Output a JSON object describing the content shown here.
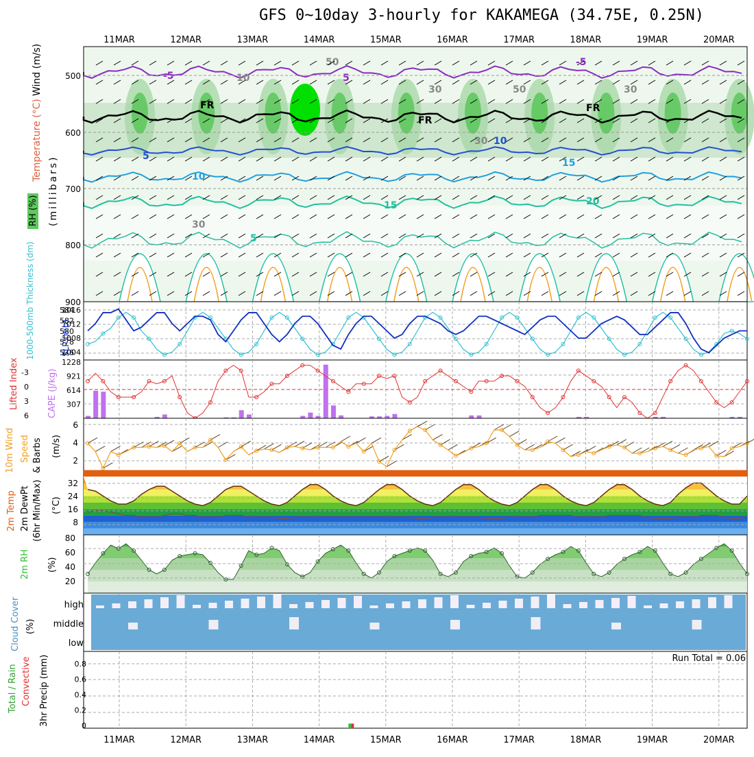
{
  "title": "GFS 0~10day 3-hourly for KAKAMEGA (34.75E, 0.25N)",
  "dates": [
    "11MAR",
    "12MAR",
    "13MAR",
    "14MAR",
    "15MAR",
    "16MAR",
    "17MAR",
    "18MAR",
    "19MAR",
    "20MAR"
  ],
  "colors": {
    "rh_light": "#e6f4e6",
    "rh_mid": "#a8d8a8",
    "rh_dark": "#5fc85f",
    "rh_max": "#00e000",
    "temp_purple": "#8a2bc0",
    "temp_blue": "#2050d0",
    "temp_cyan": "#20a0e0",
    "temp_teal": "#20c0a0",
    "slp": "#1030c0",
    "thickness": "#30c0d0",
    "lifted_index": "#e03030",
    "cape": "#c070f0",
    "wind10m": "#f0a020",
    "rh2m": "#30c030",
    "cloud": "#6aaad6",
    "precip_rain": "#30c030",
    "precip_conv": "#e03030"
  },
  "panels": {
    "upper": {
      "ylabel_wind": "Wind (m/s)",
      "ylabel_temp": "Temperature (°C)",
      "ylabel_rh": "RH (%)",
      "ylabel_mb": "(millibars)",
      "y_ticks": [
        "500",
        "600",
        "700",
        "800",
        "900"
      ],
      "contour_labels": [
        "-5",
        "5",
        "-5",
        "FR",
        "FR",
        "FR",
        "5",
        "10",
        "10",
        "15",
        "15",
        "20",
        "5",
        "10",
        "30",
        "50",
        "30",
        "30",
        "50",
        "30"
      ]
    },
    "slp": {
      "ylabel_thick": "1000-500mb Thickness (dm)",
      "ylabel_slp": "SLP (mb)",
      "left_ticks": [
        "584",
        "582",
        "580",
        "578",
        "576"
      ],
      "right_ticks": [
        "1016",
        "1012",
        "1008",
        "1004"
      ]
    },
    "cape": {
      "ylabel_li": "Lifted Index",
      "ylabel_cape": "CAPE (J/kg)",
      "left_ticks": [
        "-3",
        "0",
        "3",
        "6"
      ],
      "right_ticks": [
        "1228",
        "921",
        "614",
        "307"
      ]
    },
    "wind": {
      "ylabel_1": "10m Wind",
      "ylabel_2": "Speed",
      "ylabel_3": "& Barbs",
      "ylabel_units": "(m/s)",
      "ticks": [
        "6",
        "4",
        "2"
      ]
    },
    "temp": {
      "ylabel_1": "2m Temp",
      "ylabel_2": "2m DewPt",
      "ylabel_3": "(6hr Min/Max)",
      "ylabel_units": "(°C)",
      "ticks": [
        "32",
        "24",
        "16",
        "8"
      ]
    },
    "rh": {
      "ylabel": "2m RH",
      "units": "(%)",
      "ticks": [
        "80",
        "60",
        "40",
        "20"
      ]
    },
    "cloud": {
      "ylabel": "Cloud Cover",
      "units": "(%)",
      "levels": [
        "high",
        "middle",
        "low"
      ]
    },
    "precip": {
      "ylabel_1": "Total / Rain",
      "ylabel_2": "Convective",
      "ylabel_3": "3hr Precip (mm)",
      "ticks": [
        "0.8",
        "0.6",
        "0.4",
        "0.2",
        "0"
      ],
      "run_total": "Run Total = 0.06"
    }
  },
  "chart_data": [
    {
      "type": "line",
      "name_left": "1000-500mb Thickness (dm)",
      "name_right": "SLP (mb)",
      "x_labels": [
        "11MAR",
        "12MAR",
        "13MAR",
        "14MAR",
        "15MAR",
        "16MAR",
        "17MAR",
        "18MAR",
        "19MAR",
        "20MAR"
      ],
      "series": [
        {
          "name": "SLP (mb)",
          "values": [
            1010,
            1012,
            1015,
            1015,
            1016,
            1013,
            1010,
            1011,
            1013,
            1015,
            1015,
            1012,
            1010,
            1012,
            1014,
            1014,
            1013,
            1009,
            1007,
            1010,
            1013,
            1015,
            1015,
            1012,
            1009,
            1007,
            1009,
            1012,
            1014,
            1014,
            1012,
            1009,
            1006,
            1005,
            1009,
            1012,
            1014,
            1014,
            1012,
            1010,
            1008,
            1009,
            1012,
            1014,
            1014,
            1013,
            1012,
            1010,
            1009,
            1010,
            1012,
            1014,
            1014,
            1013,
            1012,
            1011,
            1010,
            1009,
            1011,
            1013,
            1014,
            1014,
            1012,
            1010,
            1008,
            1008,
            1010,
            1012,
            1013,
            1014,
            1013,
            1011,
            1009,
            1009,
            1011,
            1013,
            1015,
            1015,
            1012,
            1008,
            1005,
            1004,
            1006,
            1008,
            1009,
            1010,
            1010
          ]
        },
        {
          "name": "1000-500mb Thickness (dm)",
          "values": [
            578,
            578.5,
            580,
            581,
            583,
            584,
            583,
            580.5,
            579,
            577,
            576,
            576.5,
            578,
            580.5,
            583,
            584,
            583,
            581,
            579,
            577,
            576,
            576.5,
            578,
            580.5,
            583,
            584,
            583,
            581,
            579,
            577,
            576,
            576.5,
            578,
            580.5,
            583,
            584,
            583,
            581,
            579,
            577,
            576,
            576.5,
            578,
            580.5,
            583,
            584,
            583,
            581,
            579,
            577,
            576,
            576.5,
            578,
            580.5,
            583,
            584,
            583,
            581,
            579,
            577,
            576,
            576.5,
            578,
            580.5,
            583,
            584,
            583,
            581,
            579,
            577,
            576,
            576.5,
            578,
            580.5,
            583,
            584,
            583,
            581,
            579,
            577,
            576,
            576.5,
            578,
            580,
            580.5,
            580,
            579
          ]
        }
      ]
    },
    {
      "type": "bar",
      "name": "CAPE (J/kg) / Lifted Index",
      "series": [
        {
          "name": "Lifted Index",
          "values": [
            -1,
            -2.5,
            -1,
            1,
            2,
            2,
            2,
            1,
            -1,
            -0.5,
            -1,
            -2,
            2,
            5,
            6,
            5,
            3,
            -1,
            -3,
            -4,
            -3,
            2,
            2,
            1,
            -0.5,
            -0.5,
            -2,
            -3,
            -4,
            -4,
            -3,
            -2,
            -1,
            0,
            1,
            -0.5,
            -0.5,
            -0.5,
            -2,
            -1.5,
            -2,
            2,
            3,
            2,
            -1,
            -2,
            -3,
            -2,
            -1,
            0,
            1,
            -1,
            -1,
            -1,
            -2,
            -2,
            -1,
            0,
            2,
            4,
            5,
            4,
            2,
            -1,
            -3,
            -2,
            -1,
            0,
            2,
            4,
            2,
            3,
            5,
            6,
            5,
            2,
            -1,
            -3,
            -4,
            -3,
            -1,
            1,
            3,
            4,
            3,
            1,
            -1
          ]
        },
        {
          "name": "CAPE (J/kg)",
          "values": [
            50,
            580,
            560,
            0,
            0,
            0,
            0,
            0,
            0,
            30,
            80,
            0,
            0,
            0,
            0,
            0,
            0,
            0,
            20,
            20,
            170,
            80,
            0,
            0,
            0,
            0,
            0,
            0,
            50,
            120,
            50,
            1130,
            270,
            60,
            0,
            0,
            0,
            40,
            40,
            50,
            90,
            0,
            0,
            0,
            0,
            0,
            0,
            0,
            0,
            0,
            60,
            60,
            0,
            0,
            0,
            0,
            0,
            0,
            0,
            0,
            0,
            0,
            0,
            0,
            30,
            30,
            0,
            0,
            0,
            0,
            0,
            0,
            0,
            0,
            30,
            30,
            0,
            0,
            0,
            0,
            0,
            0,
            0,
            0,
            30,
            30,
            0
          ]
        }
      ]
    },
    {
      "type": "line",
      "name": "10m Wind Speed (m/s)",
      "series": [
        {
          "name": "Speed",
          "values": [
            4,
            3,
            1,
            3,
            2.6,
            3,
            3.5,
            3.5,
            3.6,
            3.5,
            3.7,
            3,
            4,
            3,
            3.5,
            3.5,
            4.4,
            3.5,
            2,
            3,
            3.6,
            2.6,
            3.1,
            3.3,
            3.2,
            2.9,
            3.5,
            3.6,
            3.4,
            3.2,
            3.5,
            3.5,
            3.5,
            4.2,
            3.6,
            4,
            3,
            4,
            1.8,
            1.2,
            3.2,
            4.4,
            5.5,
            6,
            5.6,
            4.4,
            3.8,
            3.2,
            2.5,
            2.9,
            3.4,
            3.6,
            4,
            5.6,
            5.6,
            4.8,
            3.8,
            3.2,
            3.2,
            3.5,
            4.2,
            4,
            3.2,
            2.4,
            2.6,
            3,
            2.8,
            3.2,
            3.6,
            3.8,
            3.5,
            2.8,
            2.8,
            3,
            3.4,
            3.6,
            3.2,
            2.8,
            2.6,
            3.2,
            3.4,
            3.6,
            2.5,
            2.4,
            3.4,
            3.6,
            4
          ]
        }
      ]
    },
    {
      "type": "area",
      "name": "2m Temp / DewPt (°C)",
      "series": [
        {
          "name": "2m Temp",
          "values": [
            28,
            27,
            24,
            21,
            19,
            19,
            21,
            25,
            28,
            30,
            30,
            27,
            24,
            21,
            19,
            18,
            20,
            24,
            28,
            30,
            30,
            27,
            24,
            21,
            19,
            18,
            20,
            24,
            28,
            31,
            31,
            28,
            24,
            21,
            19,
            18,
            20,
            24,
            28,
            31,
            31,
            28,
            24,
            21,
            19,
            18,
            20,
            24,
            28,
            31,
            31,
            28,
            24,
            21,
            19,
            18,
            20,
            24,
            28,
            31,
            31,
            28,
            24,
            21,
            19,
            18,
            20,
            24,
            28,
            31,
            31,
            28,
            24,
            21,
            19,
            18,
            20,
            25,
            29,
            32,
            32,
            28,
            24,
            21,
            19,
            19,
            24
          ]
        },
        {
          "name": "2m DewPt",
          "values": [
            14,
            15,
            15,
            14,
            13,
            12,
            12,
            11,
            11,
            11,
            12,
            13,
            13,
            12,
            12,
            11,
            11,
            11,
            12,
            12,
            12,
            11,
            11,
            11,
            11,
            10,
            10,
            11,
            11,
            11,
            11,
            11,
            11,
            11,
            11,
            11,
            11,
            11,
            11,
            11,
            11,
            11,
            11,
            10,
            10,
            11,
            11,
            11,
            11,
            11,
            11,
            11,
            10,
            10,
            10,
            11,
            11,
            11,
            11,
            12,
            12,
            12,
            12,
            12,
            11,
            11,
            11,
            11,
            12,
            12,
            12,
            12,
            12,
            11,
            10,
            10,
            10,
            11,
            11,
            11,
            12,
            12,
            12,
            11,
            10,
            10,
            12
          ]
        }
      ]
    },
    {
      "type": "area",
      "name": "2m RH (%)",
      "series": [
        {
          "name": "2m RH",
          "values": [
            28,
            44,
            58,
            70,
            65,
            72,
            62,
            48,
            34,
            28,
            34,
            48,
            54,
            56,
            58,
            56,
            44,
            30,
            20,
            20,
            40,
            62,
            56,
            58,
            66,
            62,
            42,
            30,
            24,
            30,
            46,
            58,
            64,
            70,
            62,
            44,
            28,
            22,
            30,
            46,
            54,
            58,
            62,
            66,
            62,
            48,
            28,
            24,
            30,
            46,
            54,
            58,
            60,
            66,
            58,
            40,
            24,
            22,
            30,
            42,
            50,
            56,
            60,
            68,
            62,
            44,
            28,
            24,
            30,
            42,
            50,
            56,
            60,
            68,
            62,
            44,
            28,
            24,
            30,
            42,
            50,
            58,
            66,
            72,
            62,
            44,
            28
          ]
        }
      ]
    },
    {
      "type": "bar",
      "name": "3hr Precip (mm)",
      "x_labels": [
        "11MAR",
        "12MAR",
        "13MAR",
        "14MAR",
        "15MAR",
        "16MAR",
        "17MAR",
        "18MAR",
        "19MAR",
        "20MAR"
      ],
      "ylim": [
        0,
        1
      ],
      "series": [
        {
          "name": "Total / Rain",
          "values": [
            {
              "x_index": 34,
              "value": 0.06
            }
          ]
        },
        {
          "name": "Convective",
          "values": [
            {
              "x_index": 34,
              "value": 0.06
            }
          ]
        }
      ]
    }
  ]
}
